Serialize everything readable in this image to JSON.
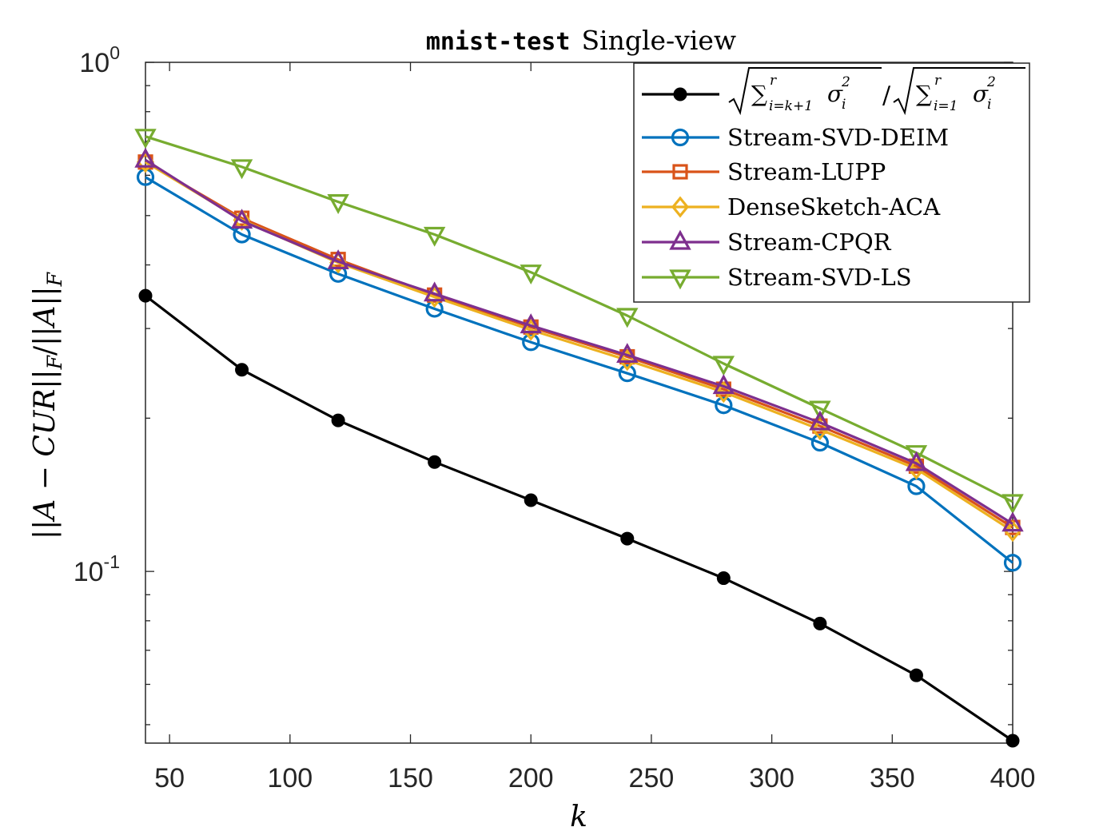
{
  "chart_data": {
    "type": "line",
    "title": {
      "code": "mnist-test",
      "rest": "Single-view"
    },
    "xlabel": "k",
    "ylabel": "||A − CUR||F/||A||F",
    "yscale": "log",
    "xlim": [
      40,
      400
    ],
    "ylim": [
      0.046,
      1.0
    ],
    "x_ticks": [
      50,
      100,
      150,
      200,
      250,
      300,
      350,
      400
    ],
    "x_tick_labels": [
      "50",
      "100",
      "150",
      "200",
      "250",
      "300",
      "350",
      "400"
    ],
    "y_tick_labels": [
      {
        "value": 1.0,
        "base": "10",
        "exp": "0"
      },
      {
        "value": 0.1,
        "base": "10",
        "exp": "-1"
      }
    ],
    "grid": false,
    "legend_position": "top-right",
    "x": [
      40,
      80,
      120,
      160,
      200,
      240,
      280,
      320,
      360,
      400
    ],
    "series": [
      {
        "name": "√(Σ_{i=k+1}^r σ_i²)/√(Σ_{i=1}^r σ_i²)",
        "color": "#000000",
        "marker": "filled-circle",
        "values": [
          0.348,
          0.249,
          0.198,
          0.164,
          0.138,
          0.116,
          0.097,
          0.079,
          0.0625,
          0.0465
        ]
      },
      {
        "name": "Stream-SVD-DEIM",
        "color": "#0072BD",
        "marker": "circle",
        "values": [
          0.595,
          0.459,
          0.384,
          0.328,
          0.282,
          0.245,
          0.212,
          0.179,
          0.147,
          0.104
        ]
      },
      {
        "name": "Stream-LUPP",
        "color": "#D95319",
        "marker": "square",
        "values": [
          0.637,
          0.494,
          0.41,
          0.349,
          0.302,
          0.264,
          0.228,
          0.193,
          0.161,
          0.122
        ]
      },
      {
        "name": "DenseSketch-ACA",
        "color": "#EDB120",
        "marker": "diamond",
        "values": [
          0.637,
          0.49,
          0.404,
          0.346,
          0.298,
          0.26,
          0.225,
          0.19,
          0.159,
          0.12
        ]
      },
      {
        "name": "Stream-CPQR",
        "color": "#7E2F8E",
        "marker": "triangle-up",
        "values": [
          0.643,
          0.488,
          0.406,
          0.351,
          0.304,
          0.266,
          0.231,
          0.196,
          0.163,
          0.124
        ]
      },
      {
        "name": "Stream-SVD-LS",
        "color": "#77AC30",
        "marker": "triangle-down",
        "values": [
          0.715,
          0.623,
          0.532,
          0.459,
          0.387,
          0.318,
          0.256,
          0.209,
          0.171,
          0.137
        ]
      }
    ],
    "legend": {
      "formula_sqrt1_sum": "∑",
      "formula_sqrt1_sub": "i=k+1",
      "formula_sqrt1_sup": "r",
      "formula_sigma": "σ",
      "formula_sigma_sub": "i",
      "formula_sigma_sup": "2",
      "formula_slash": "/",
      "formula_sqrt2_sub": "i=1",
      "labels": [
        "Stream-SVD-DEIM",
        "Stream-LUPP",
        "DenseSketch-ACA",
        "Stream-CPQR",
        "Stream-SVD-LS"
      ]
    }
  }
}
